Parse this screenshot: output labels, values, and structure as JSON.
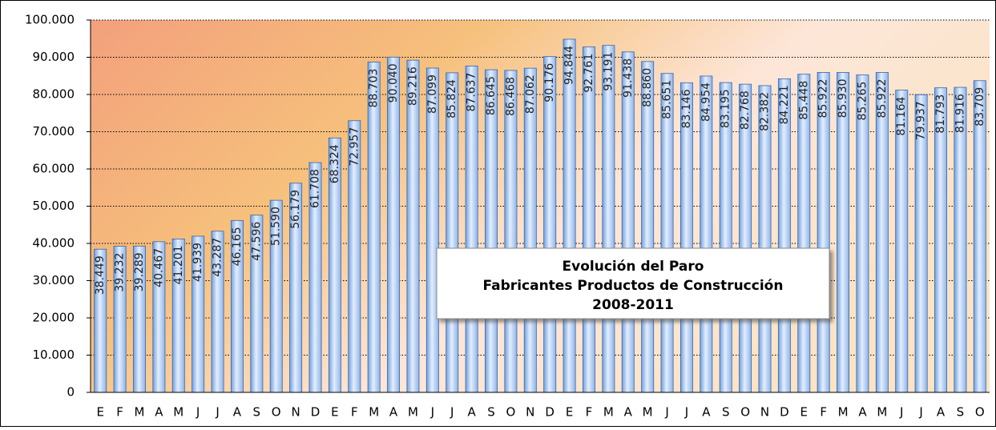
{
  "chart_data": {
    "type": "bar",
    "title_lines": [
      "Evolución del Paro",
      "Fabricantes Productos de Construcción",
      "2008-2011"
    ],
    "categories": [
      "E",
      "F",
      "M",
      "A",
      "M",
      "J",
      "J",
      "A",
      "S",
      "O",
      "N",
      "D",
      "E",
      "F",
      "M",
      "A",
      "M",
      "J",
      "J",
      "A",
      "S",
      "O",
      "N",
      "D",
      "E",
      "F",
      "M",
      "A",
      "M",
      "J",
      "J",
      "A",
      "S",
      "O",
      "N",
      "D",
      "E",
      "F",
      "M",
      "A",
      "M",
      "J",
      "J",
      "A",
      "S",
      "O"
    ],
    "values": [
      38449,
      39232,
      39289,
      40467,
      41201,
      41939,
      43287,
      46165,
      47596,
      51590,
      56179,
      61708,
      68324,
      72957,
      88703,
      90040,
      89216,
      87099,
      85824,
      87637,
      86645,
      86468,
      87062,
      90176,
      94844,
      92761,
      93191,
      91438,
      88860,
      85651,
      83146,
      84954,
      83195,
      82768,
      82382,
      84221,
      85448,
      85922,
      85930,
      85265,
      85922,
      81164,
      79937,
      81793,
      81916,
      83709
    ],
    "value_labels": [
      "38.449",
      "39.232",
      "39.289",
      "40.467",
      "41.201",
      "41.939",
      "43.287",
      "46.165",
      "47.596",
      "51.590",
      "56.179",
      "61.708",
      "68.324",
      "72.957",
      "88.703",
      "90.040",
      "89.216",
      "87.099",
      "85.824",
      "87.637",
      "86.645",
      "86.468",
      "87.062",
      "90.176",
      "94.844",
      "92.761",
      "93.191",
      "91.438",
      "88.860",
      "85.651",
      "83.146",
      "84.954",
      "83.195",
      "82.768",
      "82.382",
      "84.221",
      "85.448",
      "85.922",
      "85.930",
      "85.265",
      "85.922",
      "81.164",
      "79.937",
      "81.793",
      "81.916",
      "83.709"
    ],
    "color": "#a9c8f2",
    "ylim": [
      0,
      100000
    ],
    "yticks": [
      0,
      {
        "value": 10000,
        "label": "10.000"
      },
      {
        "value": 20000,
        "label": "20.000"
      },
      {
        "value": 30000,
        "label": "30.000"
      },
      {
        "value": 40000,
        "label": "40.000"
      },
      {
        "value": 50000,
        "label": "50.000"
      },
      {
        "value": 60000,
        "label": "60.000"
      },
      {
        "value": 70000,
        "label": "70.000"
      },
      {
        "value": 80000,
        "label": "80.000"
      },
      {
        "value": 90000,
        "label": "90.000"
      },
      {
        "value": 100000,
        "label": "100.000"
      }
    ],
    "grid": true
  }
}
